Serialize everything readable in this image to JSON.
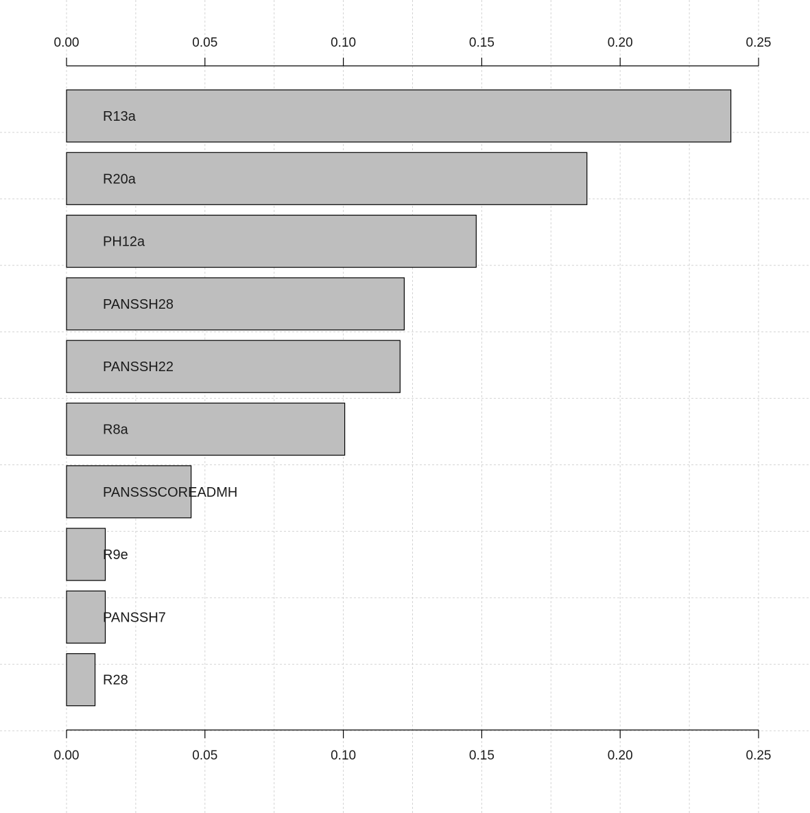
{
  "chart_data": {
    "type": "bar",
    "orientation": "horizontal",
    "title": "",
    "xlabel": "",
    "ylabel": "",
    "xlim": [
      0,
      0.25
    ],
    "x_ticks": [
      "0.00",
      "0.05",
      "0.10",
      "0.15",
      "0.20",
      "0.25"
    ],
    "x_tick_values": [
      0,
      0.05,
      0.1,
      0.15,
      0.2,
      0.25
    ],
    "axis_positions": [
      "top",
      "bottom"
    ],
    "grid": true,
    "categories": [
      "R13a",
      "R20a",
      "PH12a",
      "PANSSH28",
      "PANSSH22",
      "R8a",
      "PANSSSCOREADMH",
      "R9e",
      "PANSSH7",
      "R28"
    ],
    "values": [
      0.24,
      0.188,
      0.148,
      0.122,
      0.1205,
      0.1005,
      0.045,
      0.014,
      0.014,
      0.0103
    ],
    "colors": {
      "bar_fill": "#bebebe",
      "bar_stroke": "#000000",
      "grid": "#d3d3d3",
      "axis": "#000000"
    }
  }
}
